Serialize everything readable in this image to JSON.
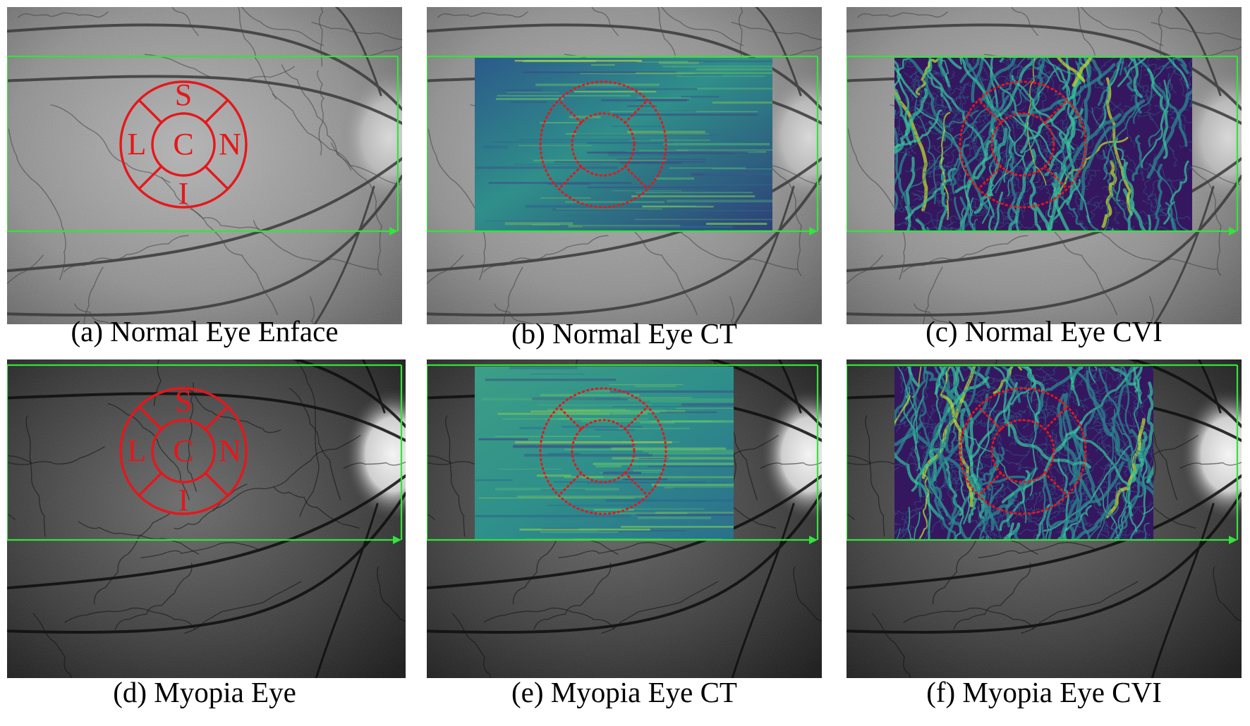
{
  "panels": [
    {
      "id": "a",
      "caption": "(a) Normal Eye Enface",
      "type": "enface",
      "fundus": "normal",
      "labels": {
        "superior": "S",
        "center": "C",
        "nasal": "N",
        "inferior": "I",
        "lateral": "L"
      }
    },
    {
      "id": "b",
      "caption": "(b) Normal Eye CT",
      "type": "ct",
      "fundus": "normal"
    },
    {
      "id": "c",
      "caption": "(c) Normal Eye CVI",
      "type": "cvi",
      "fundus": "normal"
    },
    {
      "id": "d",
      "caption": "(d) Myopia Eye",
      "type": "enface",
      "fundus": "myopia",
      "labels": {
        "superior": "S",
        "center": "C",
        "nasal": "N",
        "inferior": "I",
        "lateral": "L"
      }
    },
    {
      "id": "e",
      "caption": "(e) Myopia Eye CT",
      "type": "ct",
      "fundus": "myopia"
    },
    {
      "id": "f",
      "caption": "(f) Myopia Eye CVI",
      "type": "cvi",
      "fundus": "myopia"
    }
  ],
  "colors": {
    "scan_box": "#33e43a",
    "grid": "#e5171b",
    "ct_heatmap": "#2f8f8a",
    "cvi_background": "#35175f",
    "cvi_vessels": "#35c49a"
  }
}
